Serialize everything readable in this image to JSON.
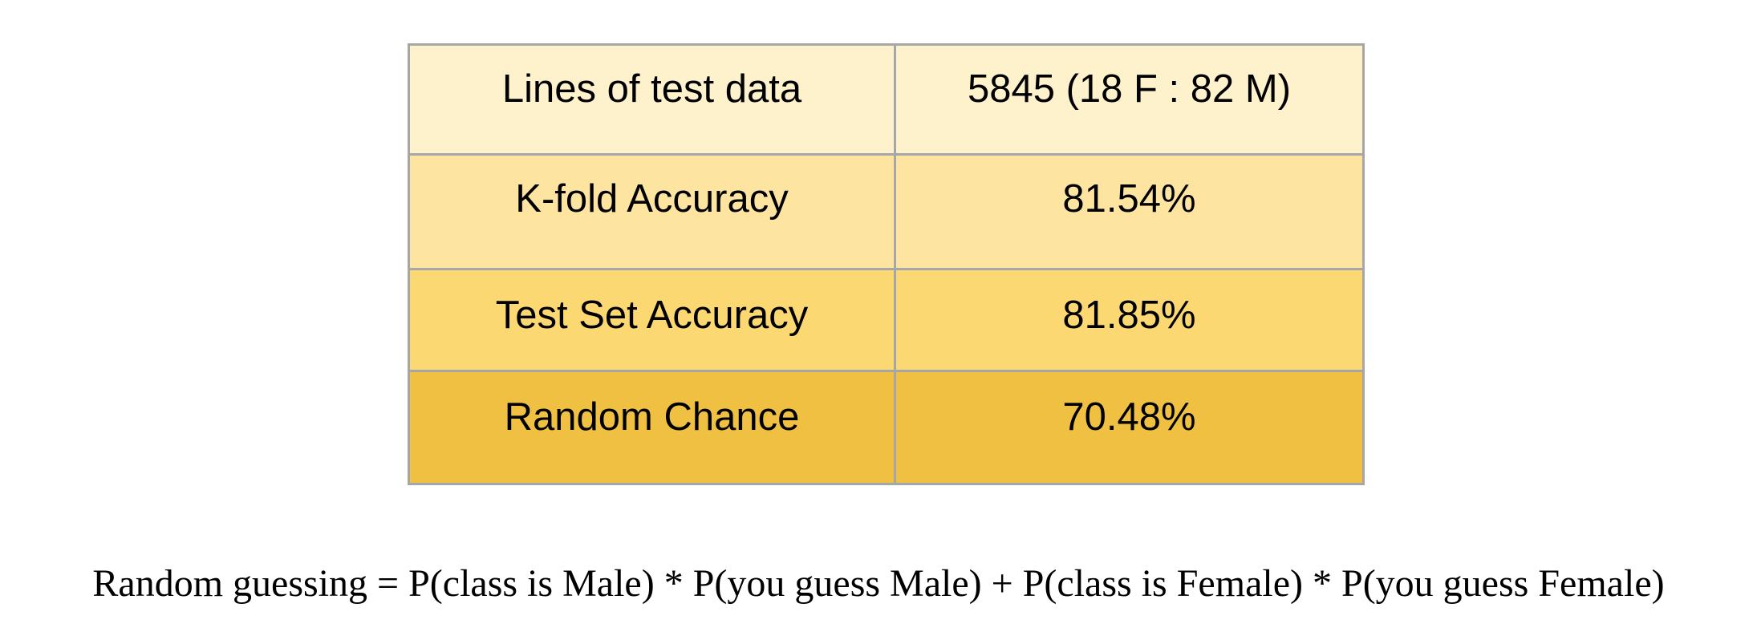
{
  "table": {
    "rows": [
      {
        "label": "Lines of test data",
        "value": "5845 (18 F : 82 M)",
        "color": "#fef2cc"
      },
      {
        "label": "K-fold Accuracy",
        "value": "81.54%",
        "color": "#fde5a1"
      },
      {
        "label": "Test Set Accuracy",
        "value": "81.85%",
        "color": "#fcd872"
      },
      {
        "label": "Random Chance",
        "value": "70.48%",
        "color": "#f0c042"
      }
    ],
    "border_color": "#a6a6a6"
  },
  "formula": "Random guessing = P(class is Male) * P(you guess Male) + P(class is Female) * P(you guess Female)"
}
